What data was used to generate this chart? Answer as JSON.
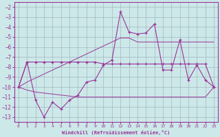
{
  "xlabel": "Windchill (Refroidissement éolien,°C)",
  "x_hours": [
    0,
    1,
    2,
    3,
    4,
    5,
    6,
    7,
    8,
    9,
    10,
    11,
    12,
    13,
    14,
    15,
    16,
    17,
    18,
    19,
    20,
    21,
    22,
    23
  ],
  "curve_volatile": [
    -10.0,
    -7.5,
    -11.3,
    -13.0,
    -11.5,
    -12.2,
    -11.3,
    -10.8,
    -9.5,
    -9.3,
    -7.8,
    -7.3,
    -2.5,
    -4.5,
    -4.7,
    -4.6,
    -3.7,
    -8.3,
    -8.3,
    -5.3,
    -9.3,
    -7.8,
    -9.3,
    -10.0
  ],
  "curve_smooth": [
    -10.0,
    -7.5,
    -7.5,
    -7.5,
    -7.5,
    -7.5,
    -7.5,
    -7.5,
    -7.5,
    -7.5,
    -7.7,
    -7.7,
    -7.7,
    -7.7,
    -7.7,
    -7.7,
    -7.7,
    -7.7,
    -7.7,
    -7.7,
    -7.7,
    -7.7,
    -7.7,
    -10.0
  ],
  "diag_upper": [
    -10.0,
    -9.5,
    -9.1,
    -8.7,
    -8.3,
    -7.9,
    -7.5,
    -7.1,
    -6.7,
    -6.3,
    -5.9,
    -5.5,
    -5.1,
    -5.1,
    -5.5,
    -5.5,
    -5.5,
    -5.5,
    -5.5,
    -5.5,
    -5.5,
    -5.5,
    -5.5,
    -5.5
  ],
  "diag_lower": [
    -10.0,
    -10.3,
    -10.5,
    -10.6,
    -10.7,
    -10.8,
    -10.9,
    -11.0,
    -11.0,
    -11.0,
    -11.0,
    -11.0,
    -11.0,
    -11.0,
    -11.0,
    -11.0,
    -11.0,
    -11.0,
    -11.0,
    -11.0,
    -11.0,
    -11.0,
    -11.0,
    -10.0
  ],
  "ylim": [
    -13.5,
    -1.5
  ],
  "xlim": [
    -0.5,
    23.5
  ],
  "yticks": [
    -2,
    -3,
    -4,
    -5,
    -6,
    -7,
    -8,
    -9,
    -10,
    -11,
    -12,
    -13
  ],
  "xticks": [
    0,
    1,
    2,
    3,
    4,
    5,
    6,
    7,
    8,
    9,
    10,
    11,
    12,
    13,
    14,
    15,
    16,
    17,
    18,
    19,
    20,
    21,
    22,
    23
  ],
  "line_color": "#993399",
  "bg_color": "#cce8e8",
  "grid_color": "#99aabb"
}
